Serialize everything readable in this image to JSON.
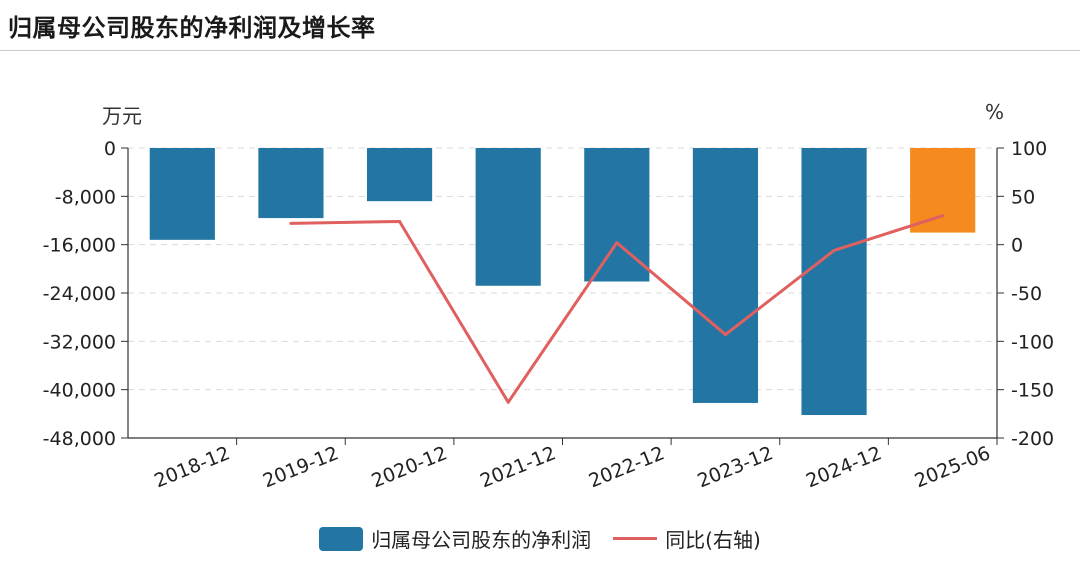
{
  "title": "归属母公司股东的净利润及增长率",
  "chart_data": {
    "type": "bar",
    "title": "归属母公司股东的净利润及增长率",
    "categories": [
      "2018-12",
      "2019-12",
      "2020-12",
      "2021-12",
      "2022-12",
      "2023-12",
      "2024-12",
      "2025-06"
    ],
    "left_unit": "万元",
    "right_unit": "%",
    "left_ylim": [
      -48000,
      0
    ],
    "left_ticks": [
      "0",
      "-8,000",
      "-16,000",
      "-24,000",
      "-32,000",
      "-40,000",
      "-48,000"
    ],
    "right_ylim": [
      -200,
      100
    ],
    "right_ticks": [
      "100",
      "50",
      "0",
      "-50",
      "-100",
      "-150",
      "-200"
    ],
    "series": [
      {
        "name": "归属母公司股东的净利润",
        "type": "bar",
        "axis": "left",
        "values": [
          -15200,
          -11600,
          -8800,
          -22800,
          -22100,
          -42200,
          -44200,
          -14000
        ],
        "colors": [
          "#2376a4",
          "#2376a4",
          "#2376a4",
          "#2376a4",
          "#2376a4",
          "#2376a4",
          "#2376a4",
          "#f58a1f"
        ]
      },
      {
        "name": "同比(右轴)",
        "type": "line",
        "axis": "right",
        "color": "#e06060",
        "values": [
          null,
          22,
          24,
          -163,
          2,
          -93,
          -6,
          30
        ]
      }
    ],
    "grid": true
  },
  "legend": {
    "bar_label": "归属母公司股东的净利润",
    "line_label": "同比(右轴)"
  }
}
